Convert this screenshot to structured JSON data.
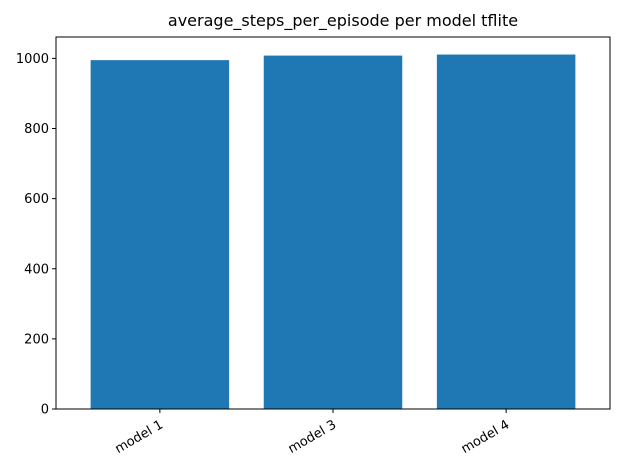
{
  "chart_data": {
    "type": "bar",
    "title": "average_steps_per_episode per model tflite",
    "xlabel": "",
    "ylabel": "",
    "categories": [
      "model 1",
      "model 3",
      "model 4"
    ],
    "values": [
      995,
      1008,
      1011
    ],
    "ylim": [
      0,
      1061
    ],
    "yticks": [
      0,
      200,
      400,
      600,
      800,
      1000
    ],
    "ytick_labels": [
      "0",
      "200",
      "400",
      "600",
      "800",
      "1000"
    ],
    "bar_color": "#1f77b4",
    "grid": false,
    "legend": "none",
    "xtick_rotation_deg": 30
  }
}
